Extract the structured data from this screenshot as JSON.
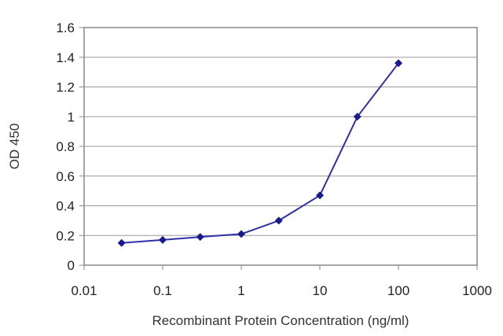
{
  "chart_data": {
    "type": "line",
    "title": "",
    "xlabel": "Recombinant Protein Concentration (ng/ml)",
    "ylabel": "OD 450",
    "x_scale": "log",
    "xlim": [
      0.01,
      1000
    ],
    "ylim": [
      0,
      1.6
    ],
    "x_ticks": [
      "0.01",
      "0.1",
      "1",
      "10",
      "100",
      "1000"
    ],
    "y_ticks": [
      "0",
      "0.2",
      "0.4",
      "0.6",
      "0.8",
      "1",
      "1.2",
      "1.4",
      "1.6"
    ],
    "grid": "horizontal",
    "legend": "none",
    "series": [
      {
        "x": [
          0.03,
          0.1,
          0.3,
          1,
          3,
          10,
          30,
          100
        ],
        "y": [
          0.15,
          0.17,
          0.19,
          0.21,
          0.3,
          0.47,
          1.0,
          1.36
        ]
      }
    ],
    "colors": {
      "line": "#3030a8",
      "marker": "#1a1a8c",
      "grid": "#999999",
      "axis": "#888888",
      "background": "#ffffff"
    }
  }
}
